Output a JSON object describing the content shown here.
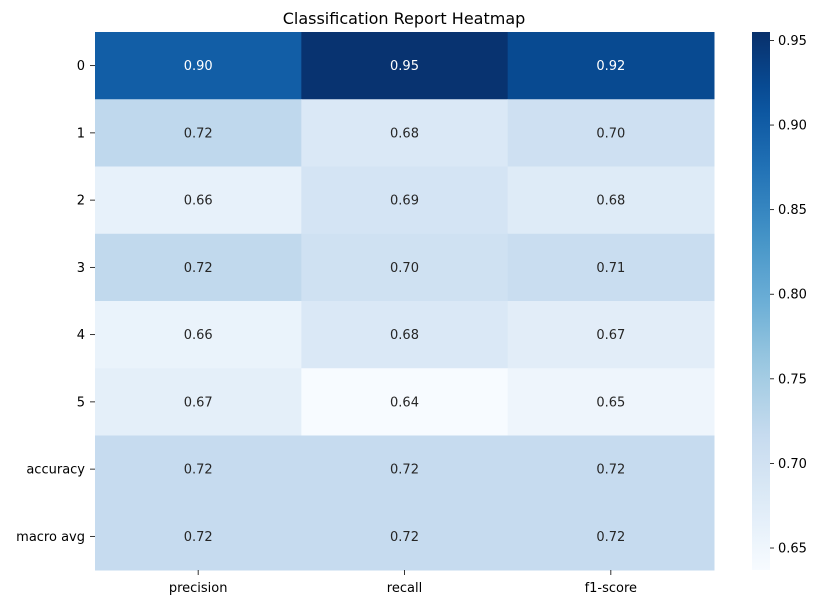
{
  "chart_data": {
    "type": "heatmap",
    "title": "Classification Report Heatmap",
    "xlabel": "",
    "ylabel": "",
    "columns": [
      "precision",
      "recall",
      "f1-score"
    ],
    "rows": [
      "0",
      "1",
      "2",
      "3",
      "4",
      "5",
      "accuracy",
      "macro avg"
    ],
    "values": [
      [
        0.899,
        0.951,
        0.924
      ],
      [
        0.723,
        0.684,
        0.703
      ],
      [
        0.662,
        0.693,
        0.677
      ],
      [
        0.721,
        0.701,
        0.711
      ],
      [
        0.658,
        0.684,
        0.671
      ],
      [
        0.667,
        0.637,
        0.652
      ],
      [
        0.716,
        0.716,
        0.716
      ],
      [
        0.716,
        0.716,
        0.716
      ]
    ],
    "value_labels": [
      [
        "0.90",
        "0.95",
        "0.92"
      ],
      [
        "0.72",
        "0.68",
        "0.70"
      ],
      [
        "0.66",
        "0.69",
        "0.68"
      ],
      [
        "0.72",
        "0.70",
        "0.71"
      ],
      [
        "0.66",
        "0.68",
        "0.67"
      ],
      [
        "0.67",
        "0.64",
        "0.65"
      ],
      [
        "0.72",
        "0.72",
        "0.72"
      ],
      [
        "0.72",
        "0.72",
        "0.72"
      ]
    ],
    "colormap": "Blues",
    "color_range": [
      0.637,
      0.955
    ],
    "colorbar_ticks": [
      0.65,
      0.7,
      0.75,
      0.8,
      0.85,
      0.9,
      0.95
    ],
    "colorbar_tick_labels": [
      "0.65",
      "0.70",
      "0.75",
      "0.80",
      "0.85",
      "0.90",
      "0.95"
    ],
    "colorbar_position": "right",
    "grid": false
  }
}
